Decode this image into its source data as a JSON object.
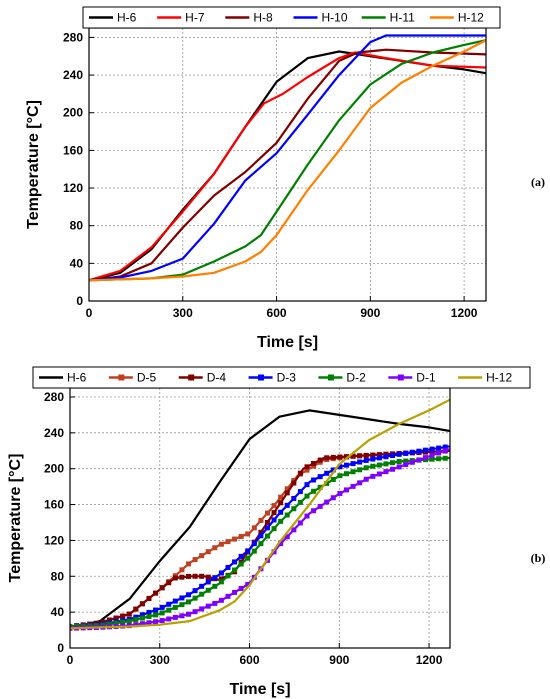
{
  "chart_data": [
    {
      "type": "line",
      "panel_label": "(a)",
      "xlabel": "Time [s]",
      "ylabel": "Temperature [°C]",
      "xlim": [
        0,
        1270
      ],
      "ylim": [
        0,
        290
      ],
      "xticks": [
        0,
        300,
        600,
        900,
        1200
      ],
      "yticks": [
        0,
        40,
        80,
        120,
        160,
        200,
        240,
        280
      ],
      "grid": true,
      "legend_position": "top",
      "series": [
        {
          "name": "H-6",
          "color": "#000000",
          "markers": false,
          "points": [
            [
              0,
              22
            ],
            [
              100,
              30
            ],
            [
              200,
              55
            ],
            [
              300,
              97
            ],
            [
              400,
              135
            ],
            [
              500,
              185
            ],
            [
              600,
              233
            ],
            [
              700,
              258
            ],
            [
              800,
              265
            ],
            [
              900,
              260
            ],
            [
              1000,
              255
            ],
            [
              1100,
              250
            ],
            [
              1200,
              246
            ],
            [
              1270,
              242
            ]
          ]
        },
        {
          "name": "H-7",
          "color": "#ff0000",
          "markers": false,
          "points": [
            [
              0,
              22
            ],
            [
              100,
              32
            ],
            [
              200,
              57
            ],
            [
              300,
              95
            ],
            [
              400,
              135
            ],
            [
              500,
              185
            ],
            [
              560,
              210
            ],
            [
              620,
              220
            ],
            [
              700,
              238
            ],
            [
              800,
              258
            ],
            [
              850,
              264
            ],
            [
              950,
              258
            ],
            [
              1100,
              250
            ],
            [
              1270,
              248
            ]
          ]
        },
        {
          "name": "H-8",
          "color": "#800000",
          "markers": false,
          "points": [
            [
              0,
              22
            ],
            [
              100,
              26
            ],
            [
              200,
              40
            ],
            [
              300,
              78
            ],
            [
              400,
              112
            ],
            [
              500,
              137
            ],
            [
              600,
              168
            ],
            [
              700,
              215
            ],
            [
              800,
              255
            ],
            [
              860,
              264
            ],
            [
              950,
              267
            ],
            [
              1100,
              264
            ],
            [
              1270,
              262
            ]
          ]
        },
        {
          "name": "H-10",
          "color": "#0000ff",
          "markers": false,
          "points": [
            [
              0,
              22
            ],
            [
              100,
              25
            ],
            [
              200,
              32
            ],
            [
              300,
              45
            ],
            [
              400,
              82
            ],
            [
              500,
              128
            ],
            [
              600,
              157
            ],
            [
              700,
              198
            ],
            [
              800,
              240
            ],
            [
              900,
              275
            ],
            [
              950,
              282
            ],
            [
              1100,
              282
            ],
            [
              1270,
              282
            ]
          ]
        },
        {
          "name": "H-11",
          "color": "#008000",
          "markers": false,
          "points": [
            [
              0,
              22
            ],
            [
              100,
              23
            ],
            [
              200,
              24
            ],
            [
              300,
              28
            ],
            [
              400,
              42
            ],
            [
              500,
              58
            ],
            [
              550,
              70
            ],
            [
              600,
              95
            ],
            [
              700,
              145
            ],
            [
              800,
              192
            ],
            [
              900,
              230
            ],
            [
              1000,
              252
            ],
            [
              1100,
              264
            ],
            [
              1200,
              272
            ],
            [
              1270,
              277
            ]
          ]
        },
        {
          "name": "H-12",
          "color": "#ff8000",
          "markers": false,
          "points": [
            [
              0,
              22
            ],
            [
              100,
              23
            ],
            [
              200,
              24
            ],
            [
              300,
              26
            ],
            [
              400,
              30
            ],
            [
              500,
              42
            ],
            [
              550,
              52
            ],
            [
              600,
              70
            ],
            [
              700,
              118
            ],
            [
              800,
              160
            ],
            [
              900,
              205
            ],
            [
              1000,
              232
            ],
            [
              1100,
              250
            ],
            [
              1200,
              265
            ],
            [
              1270,
              277
            ]
          ]
        }
      ]
    },
    {
      "type": "line",
      "panel_label": "(b)",
      "xlabel": "Time [s]",
      "ylabel": "Temperature [°C]",
      "xlim": [
        0,
        1270
      ],
      "ylim": [
        0,
        290
      ],
      "xticks": [
        0,
        300,
        600,
        900,
        1200
      ],
      "yticks": [
        0,
        40,
        80,
        120,
        160,
        200,
        240,
        280
      ],
      "grid": true,
      "legend_position": "top",
      "series": [
        {
          "name": "H-6",
          "color": "#000000",
          "markers": false,
          "points": [
            [
              0,
              22
            ],
            [
              100,
              30
            ],
            [
              200,
              55
            ],
            [
              300,
              97
            ],
            [
              400,
              135
            ],
            [
              500,
              185
            ],
            [
              600,
              233
            ],
            [
              700,
              258
            ],
            [
              800,
              265
            ],
            [
              900,
              260
            ],
            [
              1000,
              255
            ],
            [
              1100,
              250
            ],
            [
              1200,
              246
            ],
            [
              1270,
              242
            ]
          ]
        },
        {
          "name": "D-5",
          "color": "#c04020",
          "markers": true,
          "points": [
            [
              0,
              24
            ],
            [
              100,
              28
            ],
            [
              200,
              38
            ],
            [
              300,
              65
            ],
            [
              400,
              95
            ],
            [
              500,
              115
            ],
            [
              600,
              128
            ],
            [
              680,
              158
            ],
            [
              760,
              192
            ],
            [
              850,
              210
            ],
            [
              950,
              214
            ],
            [
              1100,
              217
            ],
            [
              1270,
              220
            ]
          ]
        },
        {
          "name": "D-4",
          "color": "#800000",
          "markers": true,
          "points": [
            [
              0,
              24
            ],
            [
              100,
              28
            ],
            [
              200,
              38
            ],
            [
              300,
              65
            ],
            [
              350,
              78
            ],
            [
              400,
              80
            ],
            [
              450,
              80
            ],
            [
              500,
              76
            ],
            [
              550,
              85
            ],
            [
              600,
              110
            ],
            [
              700,
              160
            ],
            [
              780,
              200
            ],
            [
              850,
              212
            ],
            [
              1000,
              215
            ],
            [
              1270,
              220
            ]
          ]
        },
        {
          "name": "D-3",
          "color": "#0000ff",
          "markers": true,
          "points": [
            [
              0,
              24
            ],
            [
              100,
              26
            ],
            [
              200,
              32
            ],
            [
              300,
              44
            ],
            [
              400,
              60
            ],
            [
              500,
              82
            ],
            [
              600,
              110
            ],
            [
              700,
              150
            ],
            [
              800,
              185
            ],
            [
              900,
              202
            ],
            [
              1000,
              210
            ],
            [
              1100,
              216
            ],
            [
              1270,
              225
            ]
          ]
        },
        {
          "name": "D-2",
          "color": "#008000",
          "markers": true,
          "points": [
            [
              0,
              24
            ],
            [
              100,
              25
            ],
            [
              200,
              30
            ],
            [
              300,
              38
            ],
            [
              400,
              52
            ],
            [
              500,
              72
            ],
            [
              600,
              102
            ],
            [
              700,
              140
            ],
            [
              800,
              172
            ],
            [
              900,
              192
            ],
            [
              1000,
              202
            ],
            [
              1100,
              208
            ],
            [
              1270,
              212
            ]
          ]
        },
        {
          "name": "D-1",
          "color": "#8000ff",
          "markers": true,
          "points": [
            [
              0,
              22
            ],
            [
              100,
              23
            ],
            [
              200,
              25
            ],
            [
              300,
              30
            ],
            [
              400,
              38
            ],
            [
              500,
              52
            ],
            [
              600,
              72
            ],
            [
              700,
              115
            ],
            [
              800,
              150
            ],
            [
              900,
              172
            ],
            [
              1000,
              190
            ],
            [
              1100,
              202
            ],
            [
              1270,
              222
            ]
          ]
        },
        {
          "name": "H-12",
          "color": "#b8a000",
          "markers": false,
          "points": [
            [
              0,
              22
            ],
            [
              100,
              23
            ],
            [
              200,
              24
            ],
            [
              300,
              26
            ],
            [
              400,
              30
            ],
            [
              500,
              42
            ],
            [
              550,
              52
            ],
            [
              600,
              70
            ],
            [
              700,
              118
            ],
            [
              800,
              160
            ],
            [
              900,
              205
            ],
            [
              1000,
              232
            ],
            [
              1100,
              250
            ],
            [
              1200,
              265
            ],
            [
              1270,
              277
            ]
          ]
        }
      ]
    }
  ]
}
